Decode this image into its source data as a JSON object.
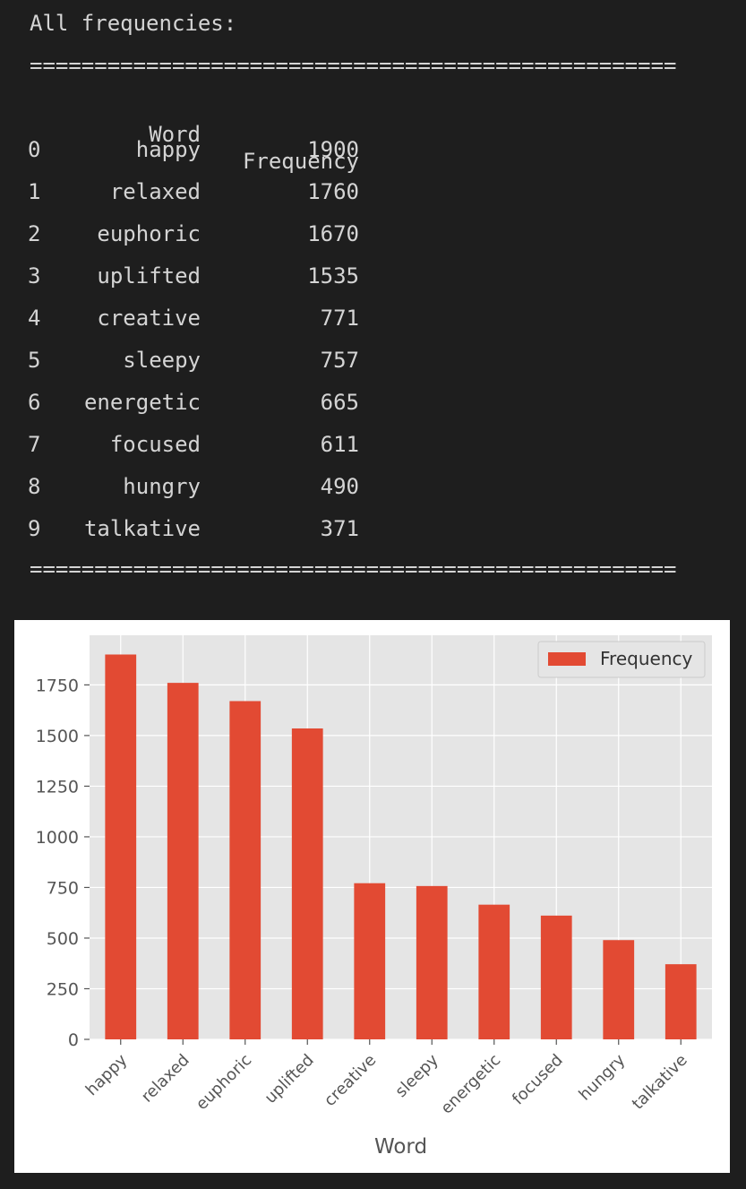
{
  "console": {
    "heading": "All frequencies:",
    "separator": "==================================================",
    "columns": [
      "Word",
      "Frequency"
    ],
    "rows": [
      {
        "index": "0",
        "word": "happy",
        "frequency": "1900"
      },
      {
        "index": "1",
        "word": "relaxed",
        "frequency": "1760"
      },
      {
        "index": "2",
        "word": "euphoric",
        "frequency": "1670"
      },
      {
        "index": "3",
        "word": "uplifted",
        "frequency": "1535"
      },
      {
        "index": "4",
        "word": "creative",
        "frequency": "771"
      },
      {
        "index": "5",
        "word": "sleepy",
        "frequency": "757"
      },
      {
        "index": "6",
        "word": "energetic",
        "frequency": "665"
      },
      {
        "index": "7",
        "word": "focused",
        "frequency": "611"
      },
      {
        "index": "8",
        "word": "hungry",
        "frequency": "490"
      },
      {
        "index": "9",
        "word": "talkative",
        "frequency": "371"
      }
    ]
  },
  "chart_data": {
    "type": "bar",
    "categories": [
      "happy",
      "relaxed",
      "euphoric",
      "uplifted",
      "creative",
      "sleepy",
      "energetic",
      "focused",
      "hungry",
      "talkative"
    ],
    "series": [
      {
        "name": "Frequency",
        "values": [
          1900,
          1760,
          1670,
          1535,
          771,
          757,
          665,
          611,
          490,
          371
        ],
        "color": "#e24a33"
      }
    ],
    "xlabel": "Word",
    "ylabel": "",
    "ylim": [
      0,
      1995
    ],
    "yticks": [
      0,
      250,
      500,
      750,
      1000,
      1250,
      1500,
      1750
    ],
    "grid": true,
    "legend": "top-right",
    "background": "#e5e5e5"
  }
}
